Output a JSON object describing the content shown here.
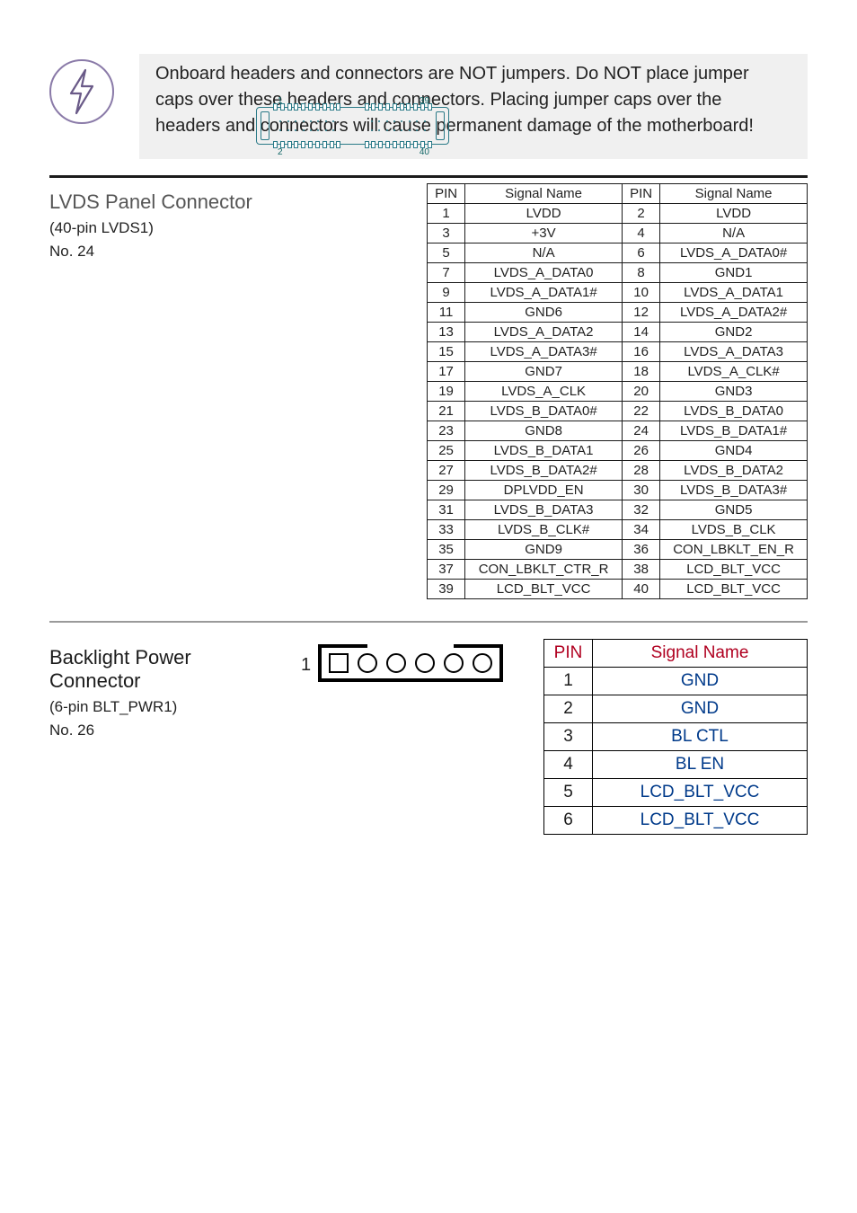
{
  "warning": {
    "text": "Onboard headers and connectors are NOT jumpers. Do NOT place jumper caps over these headers and connectors. Placing jumper caps over the headers and connectors will cause permanent damage of the motherboard!",
    "icon_stroke": "#6a5a88"
  },
  "lvds": {
    "title": "LVDS Panel Connector",
    "subtitle1": "(40-pin LVDS1)",
    "subtitle2": "No. 24",
    "diagram_labels": {
      "tl": "1",
      "tr": "39",
      "bl": "2",
      "br": "40"
    },
    "headers": {
      "pin": "PIN",
      "name": "Signal Name"
    },
    "rows": [
      {
        "p1": "1",
        "n1": "LVDD",
        "p2": "2",
        "n2": "LVDD"
      },
      {
        "p1": "3",
        "n1": "+3V",
        "p2": "4",
        "n2": "N/A"
      },
      {
        "p1": "5",
        "n1": "N/A",
        "p2": "6",
        "n2": "LVDS_A_DATA0#"
      },
      {
        "p1": "7",
        "n1": "LVDS_A_DATA0",
        "p2": "8",
        "n2": "GND1"
      },
      {
        "p1": "9",
        "n1": "LVDS_A_DATA1#",
        "p2": "10",
        "n2": "LVDS_A_DATA1"
      },
      {
        "p1": "11",
        "n1": "GND6",
        "p2": "12",
        "n2": "LVDS_A_DATA2#"
      },
      {
        "p1": "13",
        "n1": "LVDS_A_DATA2",
        "p2": "14",
        "n2": "GND2"
      },
      {
        "p1": "15",
        "n1": "LVDS_A_DATA3#",
        "p2": "16",
        "n2": "LVDS_A_DATA3"
      },
      {
        "p1": "17",
        "n1": "GND7",
        "p2": "18",
        "n2": "LVDS_A_CLK#"
      },
      {
        "p1": "19",
        "n1": "LVDS_A_CLK",
        "p2": "20",
        "n2": "GND3"
      },
      {
        "p1": "21",
        "n1": "LVDS_B_DATA0#",
        "p2": "22",
        "n2": "LVDS_B_DATA0"
      },
      {
        "p1": "23",
        "n1": "GND8",
        "p2": "24",
        "n2": "LVDS_B_DATA1#"
      },
      {
        "p1": "25",
        "n1": "LVDS_B_DATA1",
        "p2": "26",
        "n2": "GND4"
      },
      {
        "p1": "27",
        "n1": "LVDS_B_DATA2#",
        "p2": "28",
        "n2": "LVDS_B_DATA2"
      },
      {
        "p1": "29",
        "n1": "DPLVDD_EN",
        "p2": "30",
        "n2": "LVDS_B_DATA3#"
      },
      {
        "p1": "31",
        "n1": "LVDS_B_DATA3",
        "p2": "32",
        "n2": "GND5"
      },
      {
        "p1": "33",
        "n1": "LVDS_B_CLK#",
        "p2": "34",
        "n2": "LVDS_B_CLK"
      },
      {
        "p1": "35",
        "n1": "GND9",
        "p2": "36",
        "n2": "CON_LBKLT_EN_R"
      },
      {
        "p1": "37",
        "n1": "CON_LBKLT_CTR_R",
        "p2": "38",
        "n2": "LCD_BLT_VCC"
      },
      {
        "p1": "39",
        "n1": "LCD_BLT_VCC",
        "p2": "40",
        "n2": "LCD_BLT_VCC"
      }
    ]
  },
  "blt": {
    "title": "Backlight Power Connector",
    "subtitle1": "(6-pin BLT_PWR1)",
    "subtitle2": "No. 26",
    "pin1_label": "1",
    "headers": {
      "pin": "PIN",
      "name": "Signal Name"
    },
    "rows": [
      {
        "p": "1",
        "n": "GND"
      },
      {
        "p": "2",
        "n": "GND"
      },
      {
        "p": "3",
        "n": "BL CTL"
      },
      {
        "p": "4",
        "n": "BL EN"
      },
      {
        "p": "5",
        "n": "LCD_BLT_VCC"
      },
      {
        "p": "6",
        "n": "LCD_BLT_VCC"
      }
    ]
  }
}
